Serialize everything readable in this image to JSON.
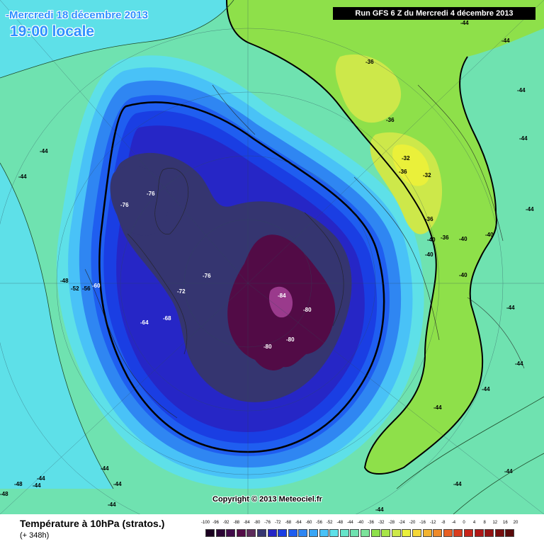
{
  "header": {
    "date": "-Mercredi 18 décembre 2013",
    "time": "19:00 locale",
    "run": "Run GFS 6 Z du Mercredi 4 décembre 2013"
  },
  "copyright": "Copyright © 2013 Meteociel.fr",
  "footer": {
    "title": "Température à 10hPa (stratos.)",
    "subtitle": "(+ 348h)"
  },
  "colors": {
    "background": "#6fe2b0",
    "cyan": "#5ee0e8",
    "light_blue": "#49c2f7",
    "blue_1": "#2f86f2",
    "blue_2": "#1f5ef0",
    "blue_3": "#1a3ee3",
    "blue_4": "#2626c6",
    "navy": "#353570",
    "purple": "#520b46",
    "magenta": "#9a3a8c",
    "green_warm": "#8ee04a",
    "yellow_green": "#cde84a",
    "yellow": "#eaf03a"
  },
  "scale": {
    "labels": [
      "-100",
      "-96",
      "-92",
      "-88",
      "-84",
      "-80",
      "-76",
      "-72",
      "-68",
      "-64",
      "-60",
      "-56",
      "-52",
      "-48",
      "-44",
      "-40",
      "-36",
      "-32",
      "-28",
      "-24",
      "-20",
      "-16",
      "-12",
      "-8",
      "-4",
      "0",
      "4",
      "8",
      "12",
      "16",
      "20"
    ],
    "colors": [
      "#1a0020",
      "#2b0434",
      "#400a49",
      "#520b46",
      "#5c2a5a",
      "#353570",
      "#2626c6",
      "#1a3ee3",
      "#1f5ef0",
      "#2f86f2",
      "#3aa6f5",
      "#49c2f7",
      "#5ee0e8",
      "#66e4c9",
      "#6fe2b0",
      "#7be39a",
      "#8ee04a",
      "#a8e548",
      "#cde84a",
      "#eaf03a",
      "#f5d838",
      "#f2b330",
      "#ee8a2a",
      "#e86024",
      "#d93d1e",
      "#c8241a",
      "#b01616",
      "#951212",
      "#780e0e",
      "#5a0a0a",
      "#3a0606"
    ]
  },
  "map_labels": [
    {
      "text": "-36"
    },
    {
      "text": "-36"
    },
    {
      "text": "-32"
    },
    {
      "text": "-32"
    },
    {
      "text": "-36"
    },
    {
      "text": "-36"
    },
    {
      "text": "-36"
    },
    {
      "text": "-40"
    },
    {
      "text": "-40"
    },
    {
      "text": "-40"
    },
    {
      "text": "-40"
    },
    {
      "text": "-40"
    },
    {
      "text": "-44"
    },
    {
      "text": "-44"
    },
    {
      "text": "-44"
    },
    {
      "text": "-44"
    },
    {
      "text": "-44"
    },
    {
      "text": "-44"
    },
    {
      "text": "-44"
    },
    {
      "text": "-44"
    },
    {
      "text": "-44"
    },
    {
      "text": "-44"
    },
    {
      "text": "-44"
    },
    {
      "text": "-44"
    },
    {
      "text": "-44"
    },
    {
      "text": "-44"
    },
    {
      "text": "-44"
    },
    {
      "text": "-44"
    },
    {
      "text": "-48"
    },
    {
      "text": "-48"
    },
    {
      "text": "-44"
    },
    {
      "text": "-48"
    },
    {
      "text": "-52"
    },
    {
      "text": "-56"
    },
    {
      "text": "-60"
    },
    {
      "text": "-64"
    },
    {
      "text": "-68"
    },
    {
      "text": "-72"
    },
    {
      "text": "-76"
    },
    {
      "text": "-76"
    },
    {
      "text": "-76"
    },
    {
      "text": "-84"
    },
    {
      "text": "-80"
    },
    {
      "text": "-80"
    },
    {
      "text": "-80"
    },
    {
      "text": "-44"
    },
    {
      "text": "-44"
    }
  ]
}
